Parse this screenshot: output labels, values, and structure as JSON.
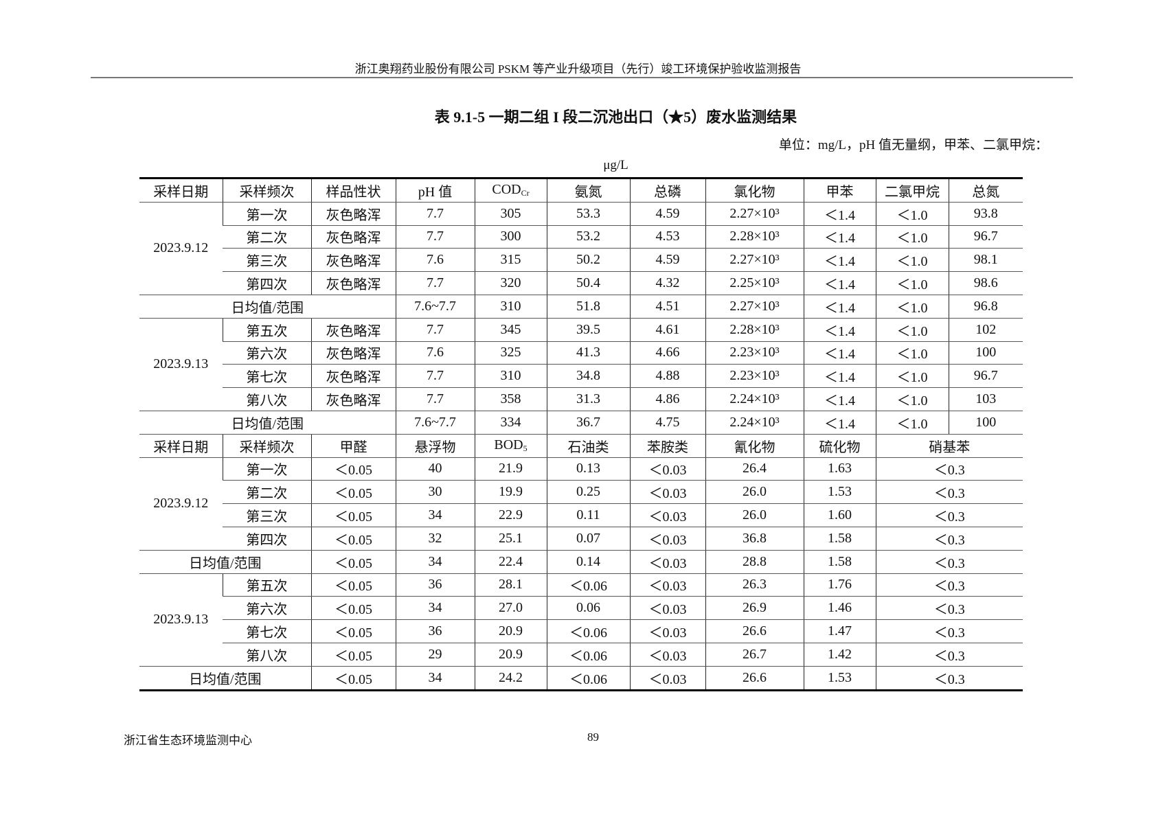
{
  "header": "浙江奥翔药业股份有限公司 PSKM 等产业升级项目（先行）竣工环境保护验收监测报告",
  "title": "表 9.1-5  一期二组 I 段二沉池出口（★5）废水监测结果",
  "units": "单位：mg/L，pH 值无量纲，甲苯、二氯甲烷：",
  "units2": "μg/L",
  "table1": {
    "headers": [
      "采样日期",
      "采样频次",
      "样品性状",
      "pH 值",
      "COD",
      "氨氮",
      "总磷",
      "氯化物",
      "甲苯",
      "二氯甲烷",
      "总氮"
    ],
    "cod_sub": "Cr",
    "days": [
      {
        "date": "2023.9.12",
        "rows": [
          [
            "第一次",
            "灰色略浑",
            "7.7",
            "305",
            "53.3",
            "4.59",
            "2.27×10³",
            "＜1.4",
            "＜1.0",
            "93.8"
          ],
          [
            "第二次",
            "灰色略浑",
            "7.7",
            "300",
            "53.2",
            "4.53",
            "2.28×10³",
            "＜1.4",
            "＜1.0",
            "96.7"
          ],
          [
            "第三次",
            "灰色略浑",
            "7.6",
            "315",
            "50.2",
            "4.59",
            "2.27×10³",
            "＜1.4",
            "＜1.0",
            "98.1"
          ],
          [
            "第四次",
            "灰色略浑",
            "7.7",
            "320",
            "50.4",
            "4.32",
            "2.25×10³",
            "＜1.4",
            "＜1.0",
            "98.6"
          ]
        ],
        "avg": [
          "日均值/范围",
          "7.6~7.7",
          "310",
          "51.8",
          "4.51",
          "2.27×10³",
          "＜1.4",
          "＜1.0",
          "96.8"
        ]
      },
      {
        "date": "2023.9.13",
        "rows": [
          [
            "第五次",
            "灰色略浑",
            "7.7",
            "345",
            "39.5",
            "4.61",
            "2.28×10³",
            "＜1.4",
            "＜1.0",
            "102"
          ],
          [
            "第六次",
            "灰色略浑",
            "7.6",
            "325",
            "41.3",
            "4.66",
            "2.23×10³",
            "＜1.4",
            "＜1.0",
            "100"
          ],
          [
            "第七次",
            "灰色略浑",
            "7.7",
            "310",
            "34.8",
            "4.88",
            "2.23×10³",
            "＜1.4",
            "＜1.0",
            "96.7"
          ],
          [
            "第八次",
            "灰色略浑",
            "7.7",
            "358",
            "31.3",
            "4.86",
            "2.24×10³",
            "＜1.4",
            "＜1.0",
            "103"
          ]
        ],
        "avg": [
          "日均值/范围",
          "7.6~7.7",
          "334",
          "36.7",
          "4.75",
          "2.24×10³",
          "＜1.4",
          "＜1.0",
          "100"
        ]
      }
    ]
  },
  "table2": {
    "headers": [
      "采样日期",
      "采样频次",
      "甲醛",
      "悬浮物",
      "BOD",
      "石油类",
      "苯胺类",
      "氰化物",
      "硫化物",
      "硝基苯"
    ],
    "bod_sub": "5",
    "days": [
      {
        "date": "2023.9.12",
        "rows": [
          [
            "第一次",
            "＜0.05",
            "40",
            "21.9",
            "0.13",
            "＜0.03",
            "26.4",
            "1.63",
            "＜0.3"
          ],
          [
            "第二次",
            "＜0.05",
            "30",
            "19.9",
            "0.25",
            "＜0.03",
            "26.0",
            "1.53",
            "＜0.3"
          ],
          [
            "第三次",
            "＜0.05",
            "34",
            "22.9",
            "0.11",
            "＜0.03",
            "26.0",
            "1.60",
            "＜0.3"
          ],
          [
            "第四次",
            "＜0.05",
            "32",
            "25.1",
            "0.07",
            "＜0.03",
            "36.8",
            "1.58",
            "＜0.3"
          ]
        ],
        "avg": [
          "日均值/范围",
          "＜0.05",
          "34",
          "22.4",
          "0.14",
          "＜0.03",
          "28.8",
          "1.58",
          "＜0.3"
        ]
      },
      {
        "date": "2023.9.13",
        "rows": [
          [
            "第五次",
            "＜0.05",
            "36",
            "28.1",
            "＜0.06",
            "＜0.03",
            "26.3",
            "1.76",
            "＜0.3"
          ],
          [
            "第六次",
            "＜0.05",
            "34",
            "27.0",
            "0.06",
            "＜0.03",
            "26.9",
            "1.46",
            "＜0.3"
          ],
          [
            "第七次",
            "＜0.05",
            "36",
            "20.9",
            "＜0.06",
            "＜0.03",
            "26.6",
            "1.47",
            "＜0.3"
          ],
          [
            "第八次",
            "＜0.05",
            "29",
            "20.9",
            "＜0.06",
            "＜0.03",
            "26.7",
            "1.42",
            "＜0.3"
          ]
        ],
        "avg": [
          "日均值/范围",
          "＜0.05",
          "34",
          "24.2",
          "＜0.06",
          "＜0.03",
          "26.6",
          "1.53",
          "＜0.3"
        ]
      }
    ]
  },
  "footer": {
    "org": "浙江省生态环境监测中心",
    "page": "89"
  }
}
